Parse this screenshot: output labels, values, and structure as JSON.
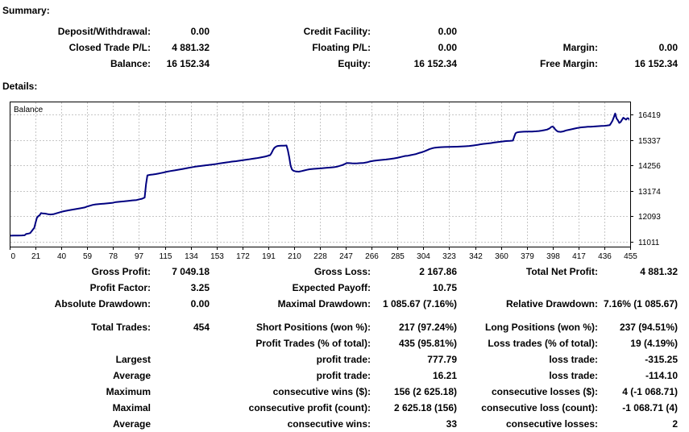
{
  "summary": {
    "title": "Summary:",
    "rows": [
      [
        "Deposit/Withdrawal:",
        "0.00",
        "Credit Facility:",
        "0.00",
        "",
        ""
      ],
      [
        "Closed Trade P/L:",
        "4 881.32",
        "Floating P/L:",
        "0.00",
        "Margin:",
        "0.00"
      ],
      [
        "Balance:",
        "16 152.34",
        "Equity:",
        "16 152.34",
        "Free Margin:",
        "16 152.34"
      ]
    ]
  },
  "details": {
    "title": "Details:",
    "rows_a": [
      [
        "Gross Profit:",
        "7 049.18",
        "Gross Loss:",
        "2 167.86",
        "Total Net Profit:",
        "4 881.32"
      ],
      [
        "Profit Factor:",
        "3.25",
        "Expected Payoff:",
        "10.75",
        "",
        ""
      ],
      [
        "Absolute Drawdown:",
        "0.00",
        "Maximal Drawdown:",
        "1 085.67 (7.16%)",
        "Relative Drawdown:",
        "7.16% (1 085.67)"
      ]
    ],
    "rows_b": [
      [
        "Total Trades:",
        "454",
        "Short Positions (won %):",
        "217 (97.24%)",
        "Long Positions (won %):",
        "237 (94.51%)"
      ],
      [
        "",
        "",
        "Profit Trades (% of total):",
        "435 (95.81%)",
        "Loss trades (% of total):",
        "19 (4.19%)"
      ],
      [
        "Largest",
        "",
        "profit trade:",
        "777.79",
        "loss trade:",
        "-315.25"
      ],
      [
        "Average",
        "",
        "profit trade:",
        "16.21",
        "loss trade:",
        "-114.10"
      ],
      [
        "Maximum",
        "",
        "consecutive wins ($):",
        "156 (2 625.18)",
        "consecutive losses ($):",
        "4 (-1 068.71)"
      ],
      [
        "Maximal",
        "",
        "consecutive profit (count):",
        "2 625.18 (156)",
        "consecutive loss (count):",
        "-1 068.71 (4)"
      ],
      [
        "Average",
        "",
        "consecutive wins:",
        "33",
        "consecutive losses:",
        "2"
      ]
    ]
  },
  "chart_data": {
    "type": "line",
    "title": "Balance",
    "series": [
      {
        "name": "Balance"
      }
    ],
    "line_color": "#000080",
    "grid_color": "#c6c6c6",
    "legend_position": "top-left-inside",
    "grid": "dashed",
    "x_ticks": [
      0,
      21,
      40,
      59,
      78,
      97,
      115,
      134,
      153,
      172,
      191,
      210,
      228,
      247,
      266,
      285,
      304,
      323,
      342,
      360,
      379,
      398,
      417,
      436,
      455
    ],
    "y_ticks": [
      16419,
      15337,
      14256,
      13174,
      12093,
      11011
    ],
    "x_range": [
      0,
      455
    ],
    "points": [
      [
        0,
        11271
      ],
      [
        3,
        11274
      ],
      [
        6,
        11278
      ],
      [
        9,
        11282
      ],
      [
        11,
        11288
      ],
      [
        12,
        11340
      ],
      [
        14,
        11365
      ],
      [
        15,
        11380
      ],
      [
        16,
        11452
      ],
      [
        17,
        11530
      ],
      [
        18,
        11600
      ],
      [
        19,
        11830
      ],
      [
        20,
        12030
      ],
      [
        21,
        12100
      ],
      [
        22,
        12140
      ],
      [
        23,
        12230
      ],
      [
        24,
        12220
      ],
      [
        26,
        12210
      ],
      [
        28,
        12185
      ],
      [
        30,
        12170
      ],
      [
        32,
        12180
      ],
      [
        34,
        12215
      ],
      [
        36,
        12250
      ],
      [
        38,
        12285
      ],
      [
        40,
        12310
      ],
      [
        43,
        12345
      ],
      [
        46,
        12375
      ],
      [
        49,
        12405
      ],
      [
        52,
        12435
      ],
      [
        55,
        12470
      ],
      [
        57,
        12515
      ],
      [
        59,
        12545
      ],
      [
        61,
        12580
      ],
      [
        63,
        12600
      ],
      [
        66,
        12615
      ],
      [
        69,
        12630
      ],
      [
        72,
        12645
      ],
      [
        75,
        12660
      ],
      [
        78,
        12700
      ],
      [
        81,
        12715
      ],
      [
        84,
        12730
      ],
      [
        87,
        12750
      ],
      [
        90,
        12770
      ],
      [
        93,
        12785
      ],
      [
        95,
        12815
      ],
      [
        97,
        12840
      ],
      [
        99,
        12890
      ],
      [
        100,
        13450
      ],
      [
        101,
        13830
      ],
      [
        103,
        13855
      ],
      [
        105,
        13870
      ],
      [
        107,
        13885
      ],
      [
        109,
        13905
      ],
      [
        111,
        13930
      ],
      [
        113,
        13955
      ],
      [
        115,
        13985
      ],
      [
        118,
        14015
      ],
      [
        121,
        14045
      ],
      [
        124,
        14075
      ],
      [
        127,
        14105
      ],
      [
        130,
        14140
      ],
      [
        133,
        14170
      ],
      [
        136,
        14200
      ],
      [
        139,
        14225
      ],
      [
        142,
        14245
      ],
      [
        145,
        14265
      ],
      [
        148,
        14290
      ],
      [
        151,
        14310
      ],
      [
        154,
        14340
      ],
      [
        157,
        14365
      ],
      [
        160,
        14390
      ],
      [
        163,
        14415
      ],
      [
        166,
        14435
      ],
      [
        169,
        14460
      ],
      [
        172,
        14485
      ],
      [
        175,
        14510
      ],
      [
        178,
        14535
      ],
      [
        181,
        14560
      ],
      [
        184,
        14590
      ],
      [
        187,
        14625
      ],
      [
        189,
        14655
      ],
      [
        191,
        14690
      ],
      [
        192,
        14780
      ],
      [
        193,
        14900
      ],
      [
        194,
        14990
      ],
      [
        195,
        15040
      ],
      [
        196,
        15070
      ],
      [
        197,
        15085
      ],
      [
        199,
        15090
      ],
      [
        201,
        15092
      ],
      [
        203,
        15100
      ],
      [
        204,
        14900
      ],
      [
        205,
        14600
      ],
      [
        206,
        14250
      ],
      [
        207,
        14080
      ],
      [
        208,
        14030
      ],
      [
        210,
        13995
      ],
      [
        212,
        13990
      ],
      [
        214,
        14012
      ],
      [
        216,
        14040
      ],
      [
        218,
        14068
      ],
      [
        220,
        14090
      ],
      [
        223,
        14108
      ],
      [
        226,
        14122
      ],
      [
        229,
        14136
      ],
      [
        232,
        14150
      ],
      [
        235,
        14165
      ],
      [
        238,
        14180
      ],
      [
        240,
        14200
      ],
      [
        242,
        14235
      ],
      [
        244,
        14270
      ],
      [
        246,
        14320
      ],
      [
        247,
        14355
      ],
      [
        249,
        14350
      ],
      [
        251,
        14345
      ],
      [
        253,
        14340
      ],
      [
        255,
        14345
      ],
      [
        257,
        14350
      ],
      [
        259,
        14355
      ],
      [
        262,
        14385
      ],
      [
        264,
        14420
      ],
      [
        267,
        14450
      ],
      [
        270,
        14470
      ],
      [
        273,
        14490
      ],
      [
        276,
        14505
      ],
      [
        279,
        14530
      ],
      [
        282,
        14555
      ],
      [
        284,
        14575
      ],
      [
        286,
        14600
      ],
      [
        288,
        14630
      ],
      [
        290,
        14655
      ],
      [
        292,
        14665
      ],
      [
        294,
        14690
      ],
      [
        296,
        14715
      ],
      [
        298,
        14740
      ],
      [
        300,
        14780
      ],
      [
        302,
        14810
      ],
      [
        304,
        14850
      ],
      [
        306,
        14900
      ],
      [
        308,
        14950
      ],
      [
        310,
        14985
      ],
      [
        312,
        15010
      ],
      [
        314,
        15020
      ],
      [
        316,
        15028
      ],
      [
        319,
        15035
      ],
      [
        322,
        15040
      ],
      [
        325,
        15045
      ],
      [
        328,
        15050
      ],
      [
        331,
        15058
      ],
      [
        334,
        15066
      ],
      [
        337,
        15080
      ],
      [
        340,
        15100
      ],
      [
        343,
        15125
      ],
      [
        345,
        15150
      ],
      [
        347,
        15165
      ],
      [
        349,
        15175
      ],
      [
        351,
        15190
      ],
      [
        353,
        15205
      ],
      [
        355,
        15225
      ],
      [
        358,
        15245
      ],
      [
        361,
        15270
      ],
      [
        364,
        15290
      ],
      [
        367,
        15300
      ],
      [
        369,
        15310
      ],
      [
        370,
        15480
      ],
      [
        371,
        15620
      ],
      [
        372,
        15655
      ],
      [
        374,
        15675
      ],
      [
        377,
        15685
      ],
      [
        380,
        15690
      ],
      [
        383,
        15695
      ],
      [
        386,
        15705
      ],
      [
        388,
        15715
      ],
      [
        390,
        15730
      ],
      [
        392,
        15750
      ],
      [
        394,
        15775
      ],
      [
        396,
        15830
      ],
      [
        397,
        15880
      ],
      [
        398,
        15905
      ],
      [
        399,
        15870
      ],
      [
        400,
        15790
      ],
      [
        401,
        15730
      ],
      [
        402,
        15695
      ],
      [
        404,
        15680
      ],
      [
        406,
        15700
      ],
      [
        408,
        15740
      ],
      [
        410,
        15765
      ],
      [
        412,
        15790
      ],
      [
        414,
        15815
      ],
      [
        416,
        15840
      ],
      [
        418,
        15860
      ],
      [
        420,
        15875
      ],
      [
        422,
        15885
      ],
      [
        424,
        15895
      ],
      [
        426,
        15900
      ],
      [
        428,
        15905
      ],
      [
        430,
        15915
      ],
      [
        432,
        15922
      ],
      [
        434,
        15930
      ],
      [
        436,
        15935
      ],
      [
        438,
        15945
      ],
      [
        440,
        15965
      ],
      [
        441,
        16050
      ],
      [
        442,
        16150
      ],
      [
        443,
        16300
      ],
      [
        444,
        16460
      ],
      [
        445,
        16250
      ],
      [
        446,
        16170
      ],
      [
        447,
        16060
      ],
      [
        448,
        16100
      ],
      [
        449,
        16190
      ],
      [
        450,
        16280
      ],
      [
        451,
        16240
      ],
      [
        452,
        16200
      ],
      [
        453,
        16260
      ],
      [
        454,
        16240
      ],
      [
        455,
        16152
      ]
    ]
  }
}
